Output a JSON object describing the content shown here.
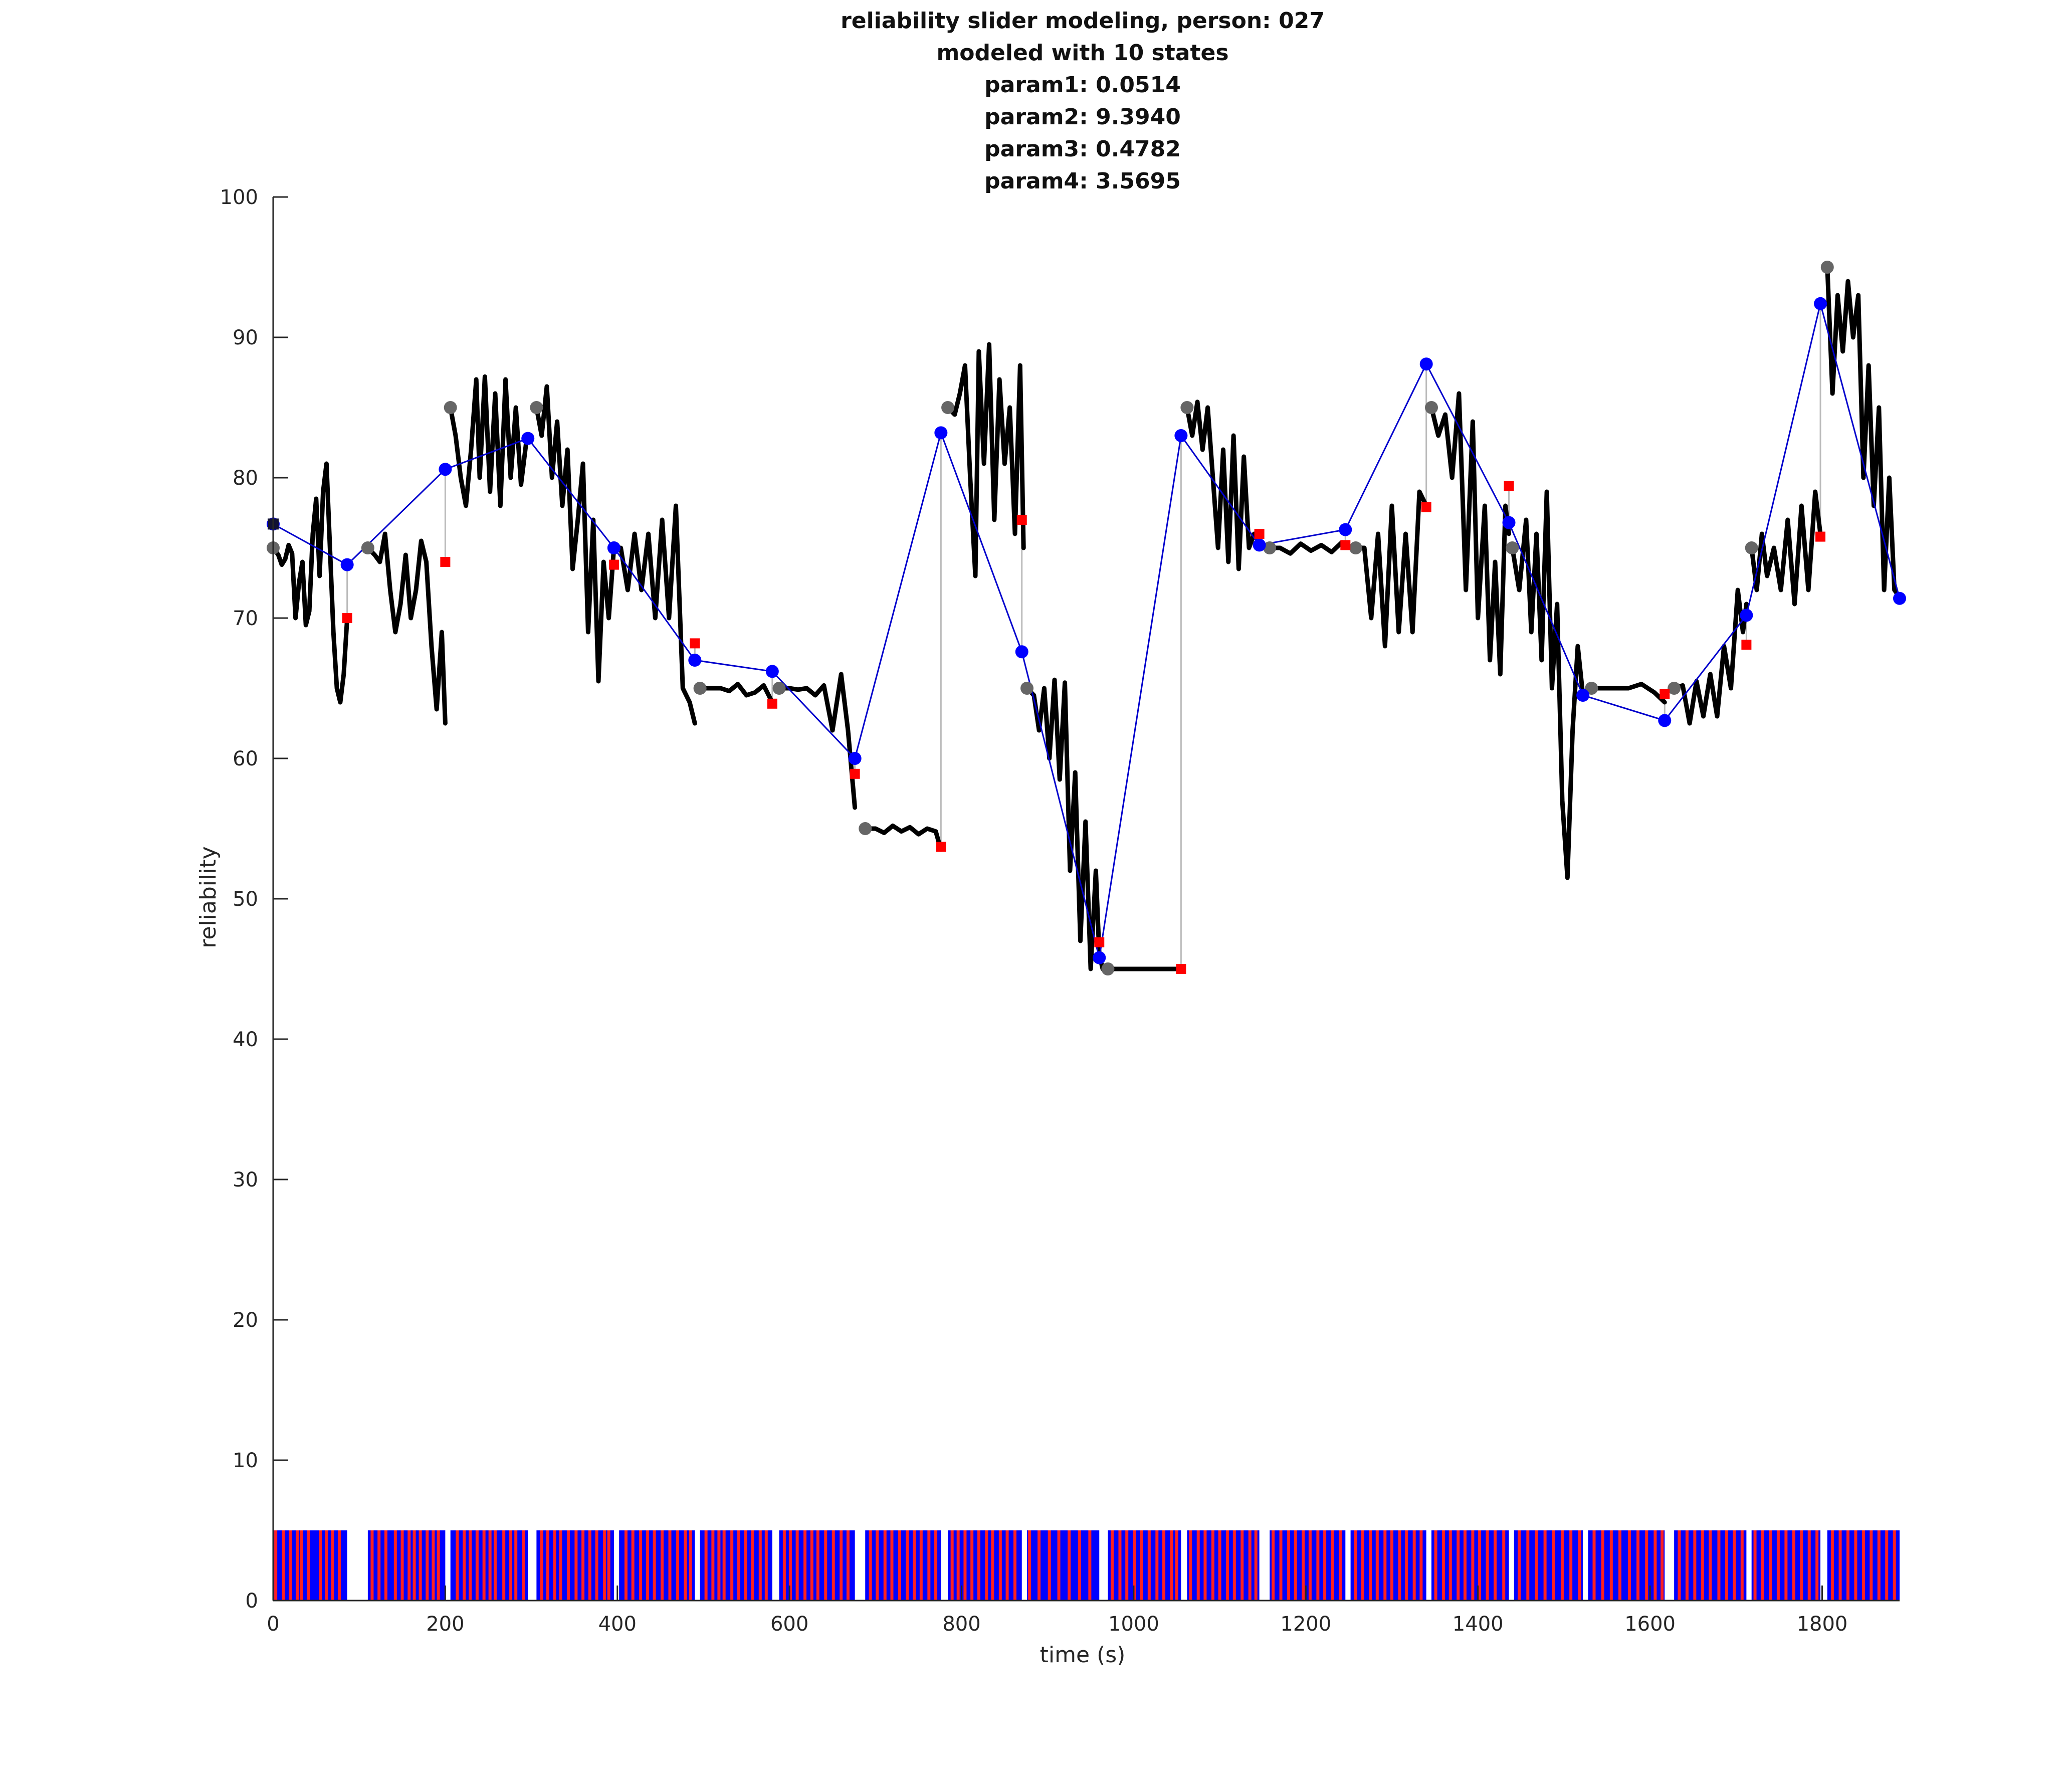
{
  "chart_data": {
    "type": "line",
    "title": [
      "reliability slider modeling, person: 027",
      "modeled with 10 states",
      "param1: 0.0514",
      "param2: 9.3940",
      "param3: 0.4782",
      "param4: 3.5695"
    ],
    "xlabel": "time (s)",
    "ylabel": "reliability",
    "xlim": [
      0,
      1890
    ],
    "ylim": [
      0,
      100
    ],
    "x_ticks": [
      0,
      200,
      400,
      600,
      800,
      1000,
      1200,
      1400,
      1600,
      1800
    ],
    "y_ticks": [
      0,
      10,
      20,
      30,
      40,
      50,
      60,
      70,
      80,
      90,
      100
    ],
    "grid": false,
    "colors": {
      "slider_trace": "#000000",
      "model_line": "#0000cc",
      "model_points": "#0000ff",
      "state_start_points": "#666666",
      "prediction_markers": "#ff0000",
      "residual_lines": "#bbbbbb",
      "event_bar_base": "#0000ff",
      "event_bar_red": "#ff2020"
    },
    "series": [
      {
        "role": "slider-trace",
        "segments": [
          {
            "x": [
              0,
              6,
              10,
              14,
              18,
              22,
              26,
              30,
              34,
              38,
              42,
              46,
              50,
              54,
              58,
              62,
              66,
              70,
              74,
              78,
              82,
              86
            ],
            "y": [
              75,
              74.5,
              73.8,
              74.2,
              75.2,
              74.6,
              70,
              72.5,
              74,
              69.5,
              70.5,
              76,
              78.5,
              73,
              79,
              81,
              75,
              69,
              65,
              64,
              66,
              70
            ]
          },
          {
            "x": [
              110,
              118,
              124,
              130,
              136,
              142,
              148,
              154,
              160,
              166,
              172,
              178,
              184,
              190,
              196,
              200
            ],
            "y": [
              75,
              74.5,
              74,
              76,
              72,
              69,
              71,
              74.5,
              70,
              72,
              75.5,
              74,
              68,
              63.5,
              69,
              62.5
            ]
          },
          {
            "x": [
              206,
              212,
              218,
              224,
              230,
              236,
              240,
              246,
              252,
              258,
              264,
              270,
              276,
              282,
              288,
              294,
              300
            ],
            "y": [
              85,
              83,
              80,
              78,
              82,
              87,
              80,
              87.2,
              79,
              86,
              78,
              87,
              80,
              85,
              79.5,
              82.5,
              83
            ]
          },
          {
            "x": [
              306,
              312,
              318,
              324,
              330,
              336,
              342,
              348,
              354,
              360,
              366,
              372,
              378,
              384,
              390,
              396
            ],
            "y": [
              85,
              83,
              86.5,
              80,
              84,
              78,
              82,
              73.5,
              77,
              81,
              69,
              77,
              65.5,
              74,
              70,
              75
            ]
          },
          {
            "x": [
              396,
              404,
              412,
              420,
              428,
              436,
              444,
              452,
              460,
              468,
              476,
              484,
              490
            ],
            "y": [
              75,
              75,
              72,
              76,
              72,
              76,
              70,
              77,
              70,
              78,
              65,
              64,
              62.5
            ]
          },
          {
            "x": [
              496,
              510,
              520,
              530,
              540,
              550,
              560,
              570,
              580
            ],
            "y": [
              65,
              65,
              65,
              64.8,
              65.3,
              64.5,
              64.7,
              65.2,
              64
            ]
          },
          {
            "x": [
              588,
              600,
              610,
              620,
              630,
              640,
              650,
              660,
              668,
              676
            ],
            "y": [
              65,
              65,
              64.9,
              65,
              64.5,
              65.2,
              62,
              66,
              62,
              56.5
            ]
          },
          {
            "x": [
              688,
              700,
              710,
              720,
              730,
              740,
              750,
              760,
              770,
              776
            ],
            "y": [
              55,
              55,
              54.7,
              55.2,
              54.8,
              55.1,
              54.6,
              55,
              54.8,
              53.5
            ]
          },
          {
            "x": [
              784,
              792,
              798,
              804,
              810,
              816,
              820,
              826,
              832,
              838,
              844,
              850,
              856,
              862,
              868,
              872
            ],
            "y": [
              85,
              84.5,
              86,
              88,
              80,
              73,
              89,
              81,
              89.5,
              77,
              87,
              81,
              85,
              76,
              88,
              75
            ]
          },
          {
            "x": [
              876,
              884,
              890,
              896,
              902,
              908,
              914,
              920,
              926,
              932,
              938,
              944,
              950,
              956,
              960,
              964
            ],
            "y": [
              65,
              64.5,
              62,
              65,
              60,
              65.6,
              58.5,
              65.4,
              52,
              59,
              47,
              55.5,
              45,
              52,
              46,
              45
            ]
          },
          {
            "x": [
              970,
              990,
              1010,
              1030,
              1050,
              1055
            ],
            "y": [
              45,
              45,
              45,
              45,
              45,
              45
            ]
          },
          {
            "x": [
              1062,
              1068,
              1074,
              1080,
              1086,
              1092,
              1098,
              1104,
              1110,
              1116,
              1122,
              1128,
              1134,
              1140,
              1146
            ],
            "y": [
              85,
              83,
              85.4,
              82,
              85,
              80,
              75,
              82,
              74,
              83,
              73.5,
              81.5,
              75,
              76,
              75.5
            ]
          },
          {
            "x": [
              1158,
              1170,
              1182,
              1194,
              1206,
              1218,
              1230,
              1242,
              1252
            ],
            "y": [
              75,
              75,
              74.6,
              75.3,
              74.8,
              75.2,
              74.7,
              75.4,
              75
            ]
          },
          {
            "x": [
              1258,
              1268,
              1276,
              1284,
              1292,
              1300,
              1308,
              1316,
              1324,
              1332,
              1340
            ],
            "y": [
              75,
              75,
              70,
              76,
              68,
              78,
              69,
              76,
              69,
              79,
              78
            ]
          },
          {
            "x": [
              1346,
              1354,
              1362,
              1370,
              1378,
              1386,
              1394,
              1400,
              1408,
              1414,
              1420,
              1426,
              1432,
              1436
            ],
            "y": [
              85,
              83,
              84.5,
              80,
              86,
              72,
              84,
              70,
              78,
              67,
              74,
              66,
              78,
              76
            ]
          },
          {
            "x": [
              1440,
              1448,
              1456,
              1462,
              1468,
              1474,
              1480,
              1486,
              1492,
              1498,
              1504,
              1510,
              1516,
              1522
            ],
            "y": [
              75,
              72,
              77,
              69,
              76,
              67,
              79,
              65,
              71,
              57,
              51.5,
              62,
              68,
              64.5
            ]
          },
          {
            "x": [
              1532,
              1545,
              1560,
              1575,
              1590,
              1605,
              1617
            ],
            "y": [
              65,
              65,
              65,
              65,
              65.3,
              64.7,
              64
            ]
          },
          {
            "x": [
              1628,
              1638,
              1646,
              1654,
              1662,
              1670,
              1678,
              1686,
              1694,
              1702,
              1708,
              1712
            ],
            "y": [
              65,
              65.2,
              62.5,
              65.5,
              63,
              66,
              63,
              68,
              65,
              72,
              69,
              71
            ]
          },
          {
            "x": [
              1718,
              1724,
              1730,
              1736,
              1744,
              1752,
              1760,
              1768,
              1776,
              1784,
              1792,
              1798
            ],
            "y": [
              75,
              72,
              76,
              73,
              75,
              72,
              77,
              71,
              78,
              72,
              79,
              76
            ]
          },
          {
            "x": [
              1806,
              1812,
              1818,
              1824,
              1830,
              1836,
              1842,
              1848,
              1854,
              1860,
              1866,
              1872,
              1878,
              1884,
              1890
            ],
            "y": [
              95,
              86,
              93,
              89,
              94,
              90,
              93,
              80,
              88,
              78,
              85,
              72,
              80,
              72,
              71.5
            ]
          }
        ]
      },
      {
        "role": "model-line",
        "x": [
          0,
          86,
          200,
          296,
          396,
          490,
          580,
          676,
          776,
          870,
          960,
          1055,
          1146,
          1246,
          1340,
          1436,
          1522,
          1617,
          1712,
          1798,
          1890
        ],
        "y": [
          76.7,
          73.8,
          80.6,
          82.8,
          75,
          67,
          66.2,
          60,
          83.2,
          67.6,
          45.8,
          83,
          75.2,
          76.3,
          88.1,
          76.8,
          64.5,
          62.7,
          70.2,
          92.4,
          71.4
        ]
      },
      {
        "role": "state-start-points",
        "x": [
          0,
          110,
          206,
          306,
          396,
          496,
          588,
          688,
          784,
          876,
          970,
          1062,
          1158,
          1258,
          1346,
          1440,
          1532,
          1628,
          1718,
          1806
        ],
        "y": [
          75,
          75,
          85,
          85,
          75,
          65,
          65,
          55,
          85,
          65,
          45,
          85,
          75,
          75,
          85,
          75,
          65,
          65,
          75,
          95
        ]
      },
      {
        "role": "prediction-markers",
        "x": [
          86,
          200,
          396,
          490,
          580,
          676,
          776,
          870,
          960,
          1055,
          1146,
          1246,
          1340,
          1436,
          1617,
          1712,
          1798
        ],
        "y": [
          70,
          74,
          73.8,
          68.2,
          63.9,
          58.9,
          53.7,
          77,
          46.9,
          45,
          76,
          75.2,
          77.9,
          79.4,
          64.6,
          68.1,
          75.8
        ]
      }
    ],
    "start_marker": {
      "x": 0,
      "y": 76.7
    },
    "event_bar": {
      "y_range": [
        0,
        5
      ],
      "blocks": [
        [
          0,
          86
        ],
        [
          110,
          200
        ],
        [
          206,
          296
        ],
        [
          306,
          396
        ],
        [
          402,
          490
        ],
        [
          496,
          580
        ],
        [
          588,
          676
        ],
        [
          688,
          776
        ],
        [
          784,
          870
        ],
        [
          876,
          960
        ],
        [
          970,
          1055
        ],
        [
          1062,
          1146
        ],
        [
          1158,
          1246
        ],
        [
          1252,
          1340
        ],
        [
          1346,
          1436
        ],
        [
          1442,
          1522
        ],
        [
          1528,
          1617
        ],
        [
          1628,
          1712
        ],
        [
          1718,
          1798
        ],
        [
          1806,
          1890
        ]
      ],
      "red_stripes": [
        3,
        12,
        20,
        28,
        33,
        41,
        55,
        62,
        69,
        77,
        115,
        123,
        131,
        142,
        150,
        158,
        164,
        171,
        179,
        186,
        192,
        214,
        222,
        229,
        237,
        245,
        252,
        258,
        268,
        276,
        282,
        291,
        312,
        319,
        327,
        334,
        343,
        352,
        360,
        368,
        376,
        385,
        390,
        410,
        418,
        427,
        435,
        443,
        452,
        461,
        470,
        479,
        485,
        503,
        511,
        518,
        524,
        533,
        541,
        549,
        557,
        566,
        573,
        594,
        601,
        609,
        618,
        626,
        633,
        642,
        651,
        660,
        668,
        694,
        702,
        711,
        719,
        728,
        737,
        745,
        753,
        762,
        770,
        789,
        796,
        804,
        812,
        820,
        829,
        836,
        845,
        853,
        862,
        879,
        890,
        902,
        913,
        925,
        937,
        949,
        975,
        984,
        992,
        1001,
        1009,
        1018,
        1027,
        1035,
        1044,
        1050,
        1066,
        1075,
        1083,
        1092,
        1100,
        1109,
        1117,
        1126,
        1135,
        1142,
        1162,
        1171,
        1180,
        1188,
        1197,
        1205,
        1214,
        1222,
        1231,
        1240,
        1258,
        1266,
        1275,
        1283,
        1292,
        1300,
        1309,
        1317,
        1326,
        1334,
        1351,
        1360,
        1368,
        1377,
        1385,
        1394,
        1402,
        1411,
        1420,
        1430,
        1448,
        1458,
        1468,
        1478,
        1488,
        1498,
        1508,
        1518,
        1535,
        1545,
        1555,
        1565,
        1576,
        1586,
        1596,
        1606,
        1614,
        1634,
        1643,
        1652,
        1661,
        1670,
        1680,
        1689,
        1698,
        1707,
        1722,
        1731,
        1740,
        1749,
        1758,
        1767,
        1776,
        1785,
        1794,
        1812,
        1821,
        1830,
        1839,
        1848,
        1857,
        1866,
        1875,
        1884
      ]
    }
  }
}
